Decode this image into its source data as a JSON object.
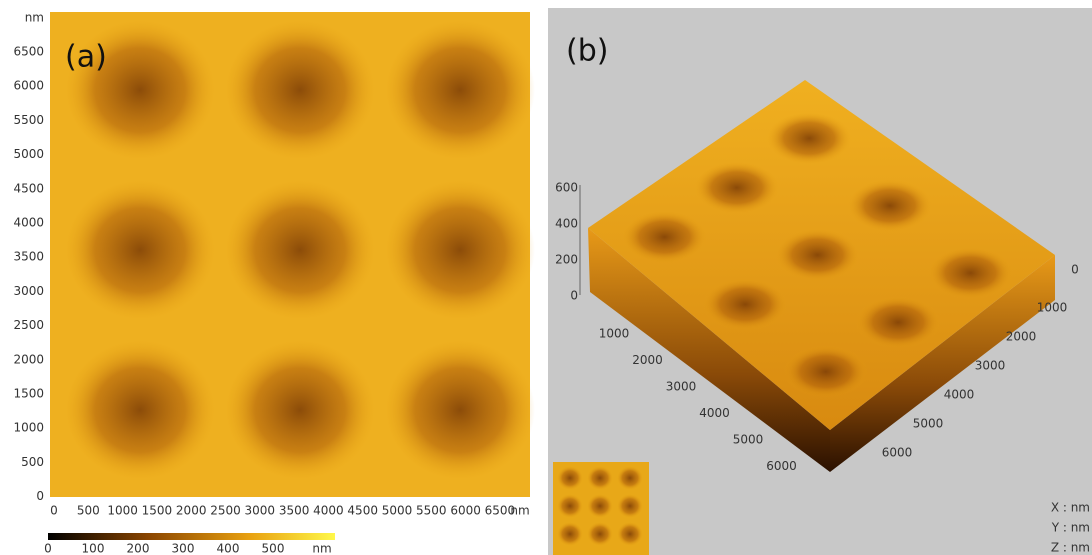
{
  "panel_a": {
    "label": "(a)",
    "y_unit": "nm",
    "y_ticks": [
      "6500",
      "6000",
      "5500",
      "5000",
      "4500",
      "4000",
      "3500",
      "3000",
      "2500",
      "2000",
      "1500",
      "1000",
      "500",
      "0"
    ],
    "x_ticks": [
      "0",
      "500",
      "1000",
      "1500",
      "2000",
      "2500",
      "3000",
      "3500",
      "4000",
      "4500",
      "5000",
      "5500",
      "6000",
      "6500"
    ],
    "x_unit": "nm",
    "colorbar_ticks": [
      "0",
      "100",
      "200",
      "300",
      "400",
      "500"
    ],
    "colorbar_unit": "nm"
  },
  "panel_b": {
    "label": "(b)",
    "z_ticks": [
      "600",
      "400",
      "200",
      "0"
    ],
    "left_ticks": [
      "1000",
      "2000",
      "3000",
      "4000",
      "5000",
      "6000"
    ],
    "right_ticks": [
      "0",
      "1000",
      "2000",
      "3000",
      "4000",
      "5000",
      "6000"
    ],
    "axis_units": [
      "X : nm",
      "Y : nm",
      "Z : nm"
    ]
  }
}
